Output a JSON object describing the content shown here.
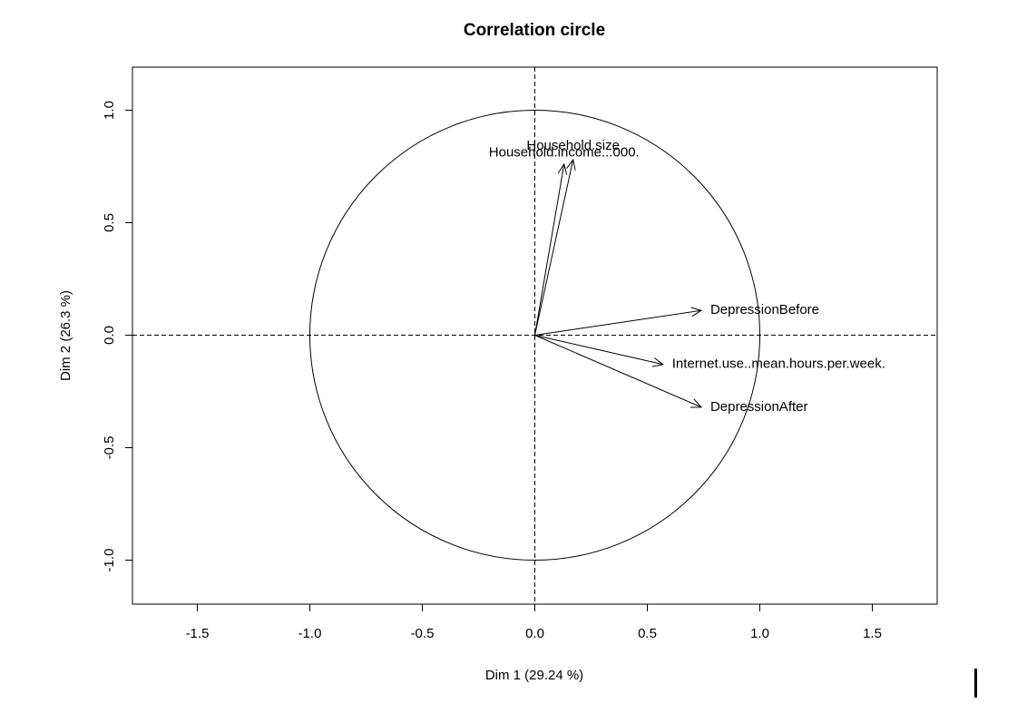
{
  "chart_data": {
    "type": "scatter",
    "title": "Correlation circle",
    "xlabel": "Dim 1 (29.24 %)",
    "ylabel": "Dim 2 (26.3 %)",
    "xlim": [
      -1.8,
      1.78
    ],
    "ylim": [
      -1.18,
      1.18
    ],
    "x_ticks": [
      -1.5,
      -1.0,
      -0.5,
      0.0,
      0.5,
      1.0,
      1.5
    ],
    "x_tick_labels": [
      "-1.5",
      "-1.0",
      "-0.5",
      "0.0",
      "0.5",
      "1.0",
      "1.5"
    ],
    "y_ticks": [
      -1.0,
      -0.5,
      0.0,
      0.5,
      1.0
    ],
    "y_tick_labels": [
      "-1.0",
      "-0.5",
      "0.0",
      "0.5",
      "1.0"
    ],
    "grid": false,
    "unit_circle": true,
    "reference_lines": [
      "x=0 dashed",
      "y=0 dashed"
    ],
    "arrows": [
      {
        "name": "Household.size",
        "x": 0.17,
        "y": 0.78,
        "label_x": 0.17,
        "label_y": 0.84
      },
      {
        "name": "Household.income...000.",
        "x": 0.13,
        "y": 0.76,
        "label_x": 0.13,
        "label_y": 0.81
      },
      {
        "name": "DepressionBefore",
        "x": 0.74,
        "y": 0.11,
        "label_x": 0.78,
        "label_y": 0.11
      },
      {
        "name": "Internet.use..mean.hours.per.week.",
        "x": 0.57,
        "y": -0.13,
        "label_x": 0.61,
        "label_y": -0.13
      },
      {
        "name": "DepressionAfter",
        "x": 0.74,
        "y": -0.32,
        "label_x": 0.78,
        "label_y": -0.32
      }
    ]
  }
}
